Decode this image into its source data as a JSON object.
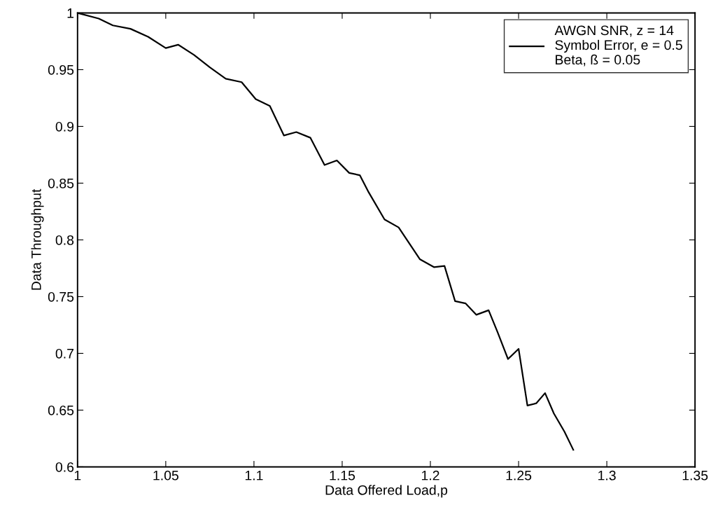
{
  "chart_data": {
    "type": "line",
    "xlabel": "Data Offered Load,p",
    "ylabel": "Data Throughput",
    "x": [
      1,
      1.012,
      1.02,
      1.03,
      1.04,
      1.05,
      1.057,
      1.066,
      1.075,
      1.084,
      1.093,
      1.101,
      1.109,
      1.117,
      1.124,
      1.132,
      1.14,
      1.147,
      1.154,
      1.16,
      1.165,
      1.174,
      1.182,
      1.194,
      1.202,
      1.208,
      1.214,
      1.22,
      1.226,
      1.233,
      1.238,
      1.244,
      1.25,
      1.255,
      1.26,
      1.265,
      1.27,
      1.276,
      1.281
    ],
    "series": [
      {
        "name": "AWGN SNR, z = 14\nSymbol Error, e = 0.5\nBeta, ß = 0.05",
        "color": "#000000",
        "values": [
          1,
          0.995,
          0.989,
          0.986,
          0.979,
          0.969,
          0.972,
          0.963,
          0.952,
          0.942,
          0.939,
          0.924,
          0.918,
          0.892,
          0.895,
          0.89,
          0.866,
          0.87,
          0.859,
          0.857,
          0.842,
          0.818,
          0.811,
          0.783,
          0.776,
          0.777,
          0.746,
          0.744,
          0.734,
          0.738,
          0.719,
          0.695,
          0.704,
          0.654,
          0.656,
          0.665,
          0.647,
          0.631,
          0.615
        ]
      }
    ],
    "xlim": [
      1,
      1.35
    ],
    "xticks": [
      1,
      1.05,
      1.1,
      1.15,
      1.2,
      1.25,
      1.3,
      1.35
    ],
    "ylim": [
      0.6,
      1
    ],
    "yticks": [
      0.6,
      0.65,
      0.7,
      0.75,
      0.8,
      0.85,
      0.9,
      0.95,
      1
    ],
    "grid": false,
    "legend": "top right",
    "marker": "none",
    "line_style": "solid"
  }
}
